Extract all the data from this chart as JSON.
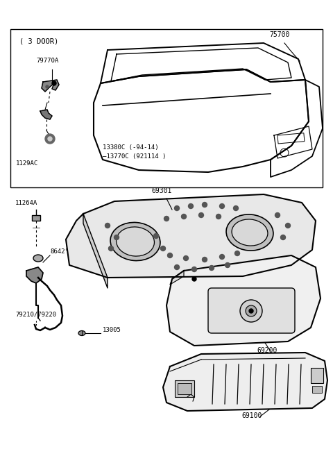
{
  "bg_color": "#ffffff",
  "border_color": "#000000",
  "text_color": "#000000",
  "figsize": [
    4.8,
    6.57
  ],
  "dpi": 100,
  "labels": {
    "section1_tag": "( 3 DOOR)",
    "part_75700": "75700",
    "part_79770A": "79770A",
    "part_1129AC": "1129AC",
    "part_13380C": "13380C (-94‑14)",
    "part_13770C": "–13770C (921114 )",
    "part_69301": "69301",
    "part_11264A": "11264A",
    "part_86427": "8642°",
    "part_79210_79220": "79210/79220",
    "part_13005": "13005",
    "part_69200": "69200",
    "part_69100": "69100"
  }
}
